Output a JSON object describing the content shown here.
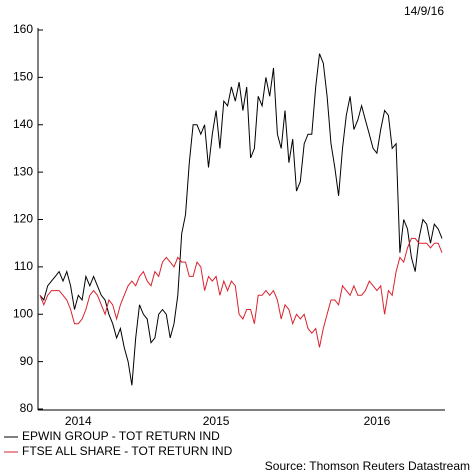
{
  "chart_data": {
    "type": "line",
    "date": "14/9/16",
    "source": "Source: Thomson Reuters Datastream",
    "categories": [
      null,
      null,
      null,
      null,
      null,
      null,
      null,
      null,
      null,
      null,
      "2014",
      null,
      null,
      null,
      null,
      null,
      null,
      null,
      null,
      null,
      null,
      null,
      null,
      null,
      null,
      null,
      null,
      null,
      null,
      null,
      null,
      null,
      null,
      null,
      null,
      null,
      null,
      null,
      null,
      null,
      null,
      null,
      null,
      null,
      null,
      null,
      "2015",
      null,
      null,
      null,
      null,
      null,
      null,
      null,
      null,
      null,
      null,
      null,
      null,
      null,
      null,
      null,
      null,
      null,
      null,
      null,
      null,
      null,
      null,
      null,
      null,
      null,
      null,
      null,
      null,
      null,
      null,
      null,
      null,
      null,
      null,
      null,
      null,
      null,
      null,
      null,
      null,
      null,
      "2016",
      null,
      null,
      null,
      null,
      null,
      null,
      null,
      null,
      null,
      null,
      null,
      null,
      null,
      null,
      null,
      null,
      null
    ],
    "series": [
      {
        "name": "EPWIN GROUP - TOT RETURN IND",
        "color": "#000000",
        "values": [
          104,
          103,
          106,
          107,
          108,
          109,
          107,
          109,
          106,
          101,
          104,
          103,
          108,
          106,
          108,
          106,
          104,
          103,
          100,
          98,
          95,
          97,
          93,
          90,
          85,
          95,
          102,
          100,
          99,
          94,
          95,
          100,
          101,
          100,
          95,
          98,
          104,
          117,
          121,
          132,
          140,
          140,
          138,
          140,
          131,
          138,
          143,
          135,
          145,
          144,
          148,
          145,
          149,
          143,
          148,
          133,
          135,
          146,
          144,
          150,
          146,
          152,
          138,
          135,
          143,
          132,
          137,
          126,
          128,
          136,
          138,
          138,
          148,
          155,
          153,
          146,
          136,
          131,
          125,
          135,
          142,
          146,
          139,
          141,
          144,
          141,
          138,
          135,
          134,
          139,
          143,
          142,
          135,
          136,
          113,
          120,
          118,
          112,
          109,
          116,
          120,
          119,
          115,
          119,
          118,
          116
        ]
      },
      {
        "name": "FTSE ALL SHARE - TOT RETURN IND",
        "color": "#d9232e",
        "values": [
          104,
          102,
          104,
          105,
          105,
          105,
          104,
          103,
          101,
          98,
          98,
          99,
          101,
          104,
          105,
          104,
          102,
          100,
          103,
          102,
          99,
          102,
          104,
          106,
          107,
          106,
          108,
          109,
          107,
          106,
          109,
          108,
          111,
          112,
          111,
          110,
          112,
          111,
          111,
          108,
          108,
          111,
          110,
          105,
          108,
          107,
          108,
          104,
          107,
          105,
          107,
          106,
          100,
          99,
          101,
          101,
          98,
          104,
          104,
          105,
          104,
          105,
          103,
          99,
          102,
          101,
          98,
          100,
          99,
          100,
          97,
          96,
          97,
          93,
          97,
          100,
          103,
          103,
          102,
          106,
          105,
          104,
          106,
          104,
          104,
          105,
          107,
          106,
          105,
          106,
          100,
          105,
          104,
          109,
          112,
          111,
          114,
          116,
          116,
          115,
          115,
          115,
          114,
          115,
          115,
          113
        ]
      }
    ],
    "ylim": [
      80,
      160
    ],
    "yticks": [
      80,
      90,
      100,
      110,
      120,
      130,
      140,
      150,
      160
    ]
  }
}
